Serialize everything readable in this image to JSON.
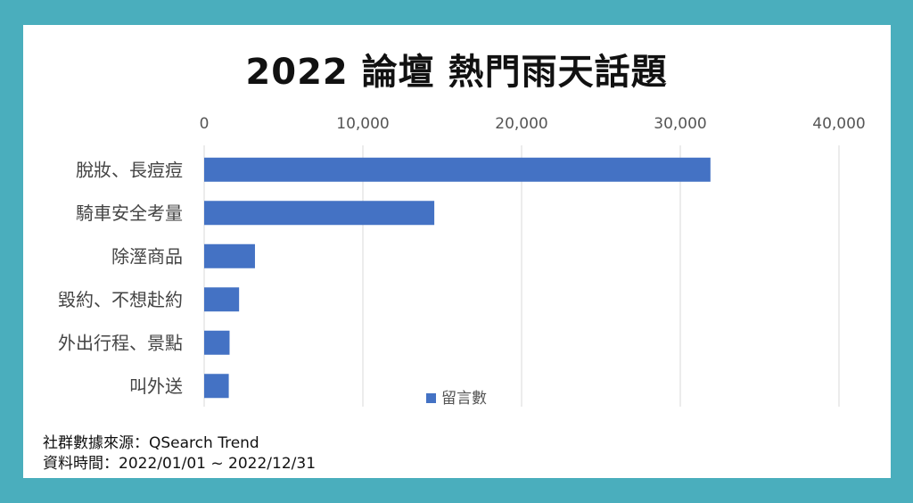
{
  "chart_data": {
    "type": "bar",
    "orientation": "horizontal",
    "title": "2022 論壇 熱門雨天話題",
    "categories": [
      "脫妝、長痘痘",
      "騎車安全考量",
      "除溼商品",
      "毀約、不想赴約",
      "外出行程、景點",
      "叫外送"
    ],
    "series": [
      {
        "name": "留言數",
        "values": [
          31900,
          14500,
          3200,
          2200,
          1600,
          1550
        ],
        "color": "#4472c4"
      }
    ],
    "xlim": [
      0,
      40000
    ],
    "xticks": [
      0,
      10000,
      20000,
      30000,
      40000
    ],
    "xtick_labels": [
      "0",
      "10,000",
      "20,000",
      "30,000",
      "40,000"
    ],
    "x_axis_position": "top",
    "grid": true,
    "legend_position": "bottom"
  },
  "footer": {
    "source_line": "社群數據來源：QSearch Trend",
    "period_line": "資料時間：2022/01/01 ~ 2022/12/31"
  },
  "colors": {
    "frame": "#4aaebd",
    "bar": "#4472c4",
    "grid": "#d9d9d9"
  }
}
